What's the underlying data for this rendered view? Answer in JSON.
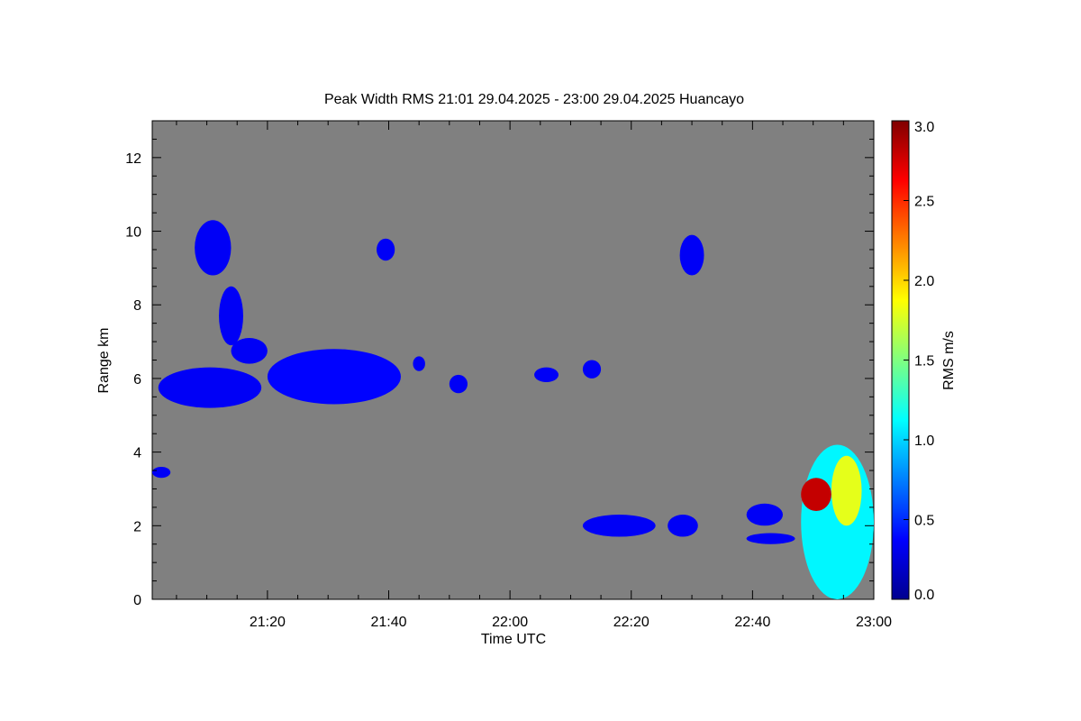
{
  "chart_data": {
    "type": "heatmap",
    "title": "Peak Width RMS   21:01 29.04.2025 - 23:00 29.04.2025 Huancayo",
    "xlabel": "Time UTC",
    "ylabel": "Range km",
    "xlim": [
      "21:01",
      "23:00"
    ],
    "ylim": [
      0,
      13
    ],
    "x_ticks": [
      "21:20",
      "21:40",
      "22:00",
      "22:20",
      "22:40",
      "23:00"
    ],
    "y_ticks": [
      "0",
      "2",
      "4",
      "6",
      "8",
      "10",
      "12"
    ],
    "background_color": "#808080",
    "colorbar": {
      "label": "RMS m/s",
      "range": [
        0.0,
        3.0
      ],
      "ticks": [
        "0.0",
        "0.5",
        "1.0",
        "1.5",
        "2.0",
        "2.5",
        "3.0"
      ],
      "colormap": "jet"
    },
    "echo_regions": [
      {
        "t_start": "21:08",
        "t_end": "21:14",
        "range_bottom": 8.8,
        "range_top": 10.3,
        "rms": 0.35
      },
      {
        "t_start": "21:12",
        "t_end": "21:16",
        "range_bottom": 6.9,
        "range_top": 8.5,
        "rms": 0.35
      },
      {
        "t_start": "21:14",
        "t_end": "21:20",
        "range_bottom": 6.4,
        "range_top": 7.1,
        "rms": 0.35
      },
      {
        "t_start": "21:20",
        "t_end": "21:42",
        "range_bottom": 5.3,
        "range_top": 6.8,
        "rms": 0.38
      },
      {
        "t_start": "21:02",
        "t_end": "21:19",
        "range_bottom": 5.2,
        "range_top": 6.3,
        "rms": 0.35
      },
      {
        "t_start": "21:38",
        "t_end": "21:41",
        "range_bottom": 9.2,
        "range_top": 9.8,
        "rms": 0.35
      },
      {
        "t_start": "21:44",
        "t_end": "21:46",
        "range_bottom": 6.2,
        "range_top": 6.6,
        "rms": 0.35
      },
      {
        "t_start": "21:50",
        "t_end": "21:53",
        "range_bottom": 5.6,
        "range_top": 6.1,
        "rms": 0.35
      },
      {
        "t_start": "22:04",
        "t_end": "22:08",
        "range_bottom": 5.9,
        "range_top": 6.3,
        "rms": 0.35
      },
      {
        "t_start": "22:12",
        "t_end": "22:15",
        "range_bottom": 6.0,
        "range_top": 6.5,
        "rms": 0.35
      },
      {
        "t_start": "22:28",
        "t_end": "22:32",
        "range_bottom": 8.8,
        "range_top": 9.9,
        "rms": 0.35
      },
      {
        "t_start": "21:01",
        "t_end": "21:04",
        "range_bottom": 3.3,
        "range_top": 3.6,
        "rms": 0.35
      },
      {
        "t_start": "22:12",
        "t_end": "22:24",
        "range_bottom": 1.7,
        "range_top": 2.3,
        "rms": 0.35
      },
      {
        "t_start": "22:26",
        "t_end": "22:31",
        "range_bottom": 1.7,
        "range_top": 2.3,
        "rms": 0.35
      },
      {
        "t_start": "22:39",
        "t_end": "22:45",
        "range_bottom": 2.0,
        "range_top": 2.6,
        "rms": 0.35
      },
      {
        "t_start": "22:39",
        "t_end": "22:47",
        "range_bottom": 1.5,
        "range_top": 1.8,
        "rms": 0.35
      },
      {
        "t_start": "22:48",
        "t_end": "23:00",
        "range_bottom": 0.0,
        "range_top": 4.2,
        "rms": 1.1
      },
      {
        "t_start": "22:48",
        "t_end": "22:53",
        "range_bottom": 2.4,
        "range_top": 3.3,
        "rms": 2.8
      },
      {
        "t_start": "22:53",
        "t_end": "22:58",
        "range_bottom": 2.0,
        "range_top": 3.9,
        "rms": 1.8
      }
    ]
  }
}
